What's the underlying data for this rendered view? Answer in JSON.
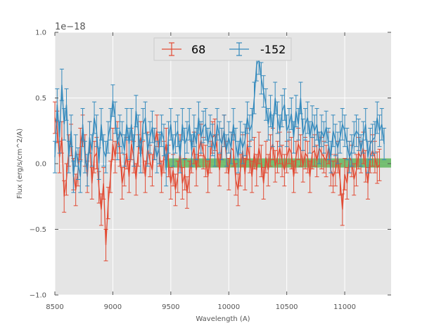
{
  "chart_data": {
    "type": "line",
    "title": "",
    "offset_label": "1e−18",
    "xlabel": "Wavelength (A)",
    "ylabel": "Flux (erg/s/cm^2/A)",
    "xlim": [
      8500,
      11400
    ],
    "ylim": [
      -1.0,
      1.0
    ],
    "x_ticks": [
      8500,
      9000,
      9500,
      10000,
      10500,
      11000
    ],
    "x_tick_labels": [
      "8500",
      "9000",
      "9500",
      "10000",
      "10500",
      "11000"
    ],
    "y_ticks": [
      -1.0,
      -0.5,
      0.0,
      0.5,
      1.0
    ],
    "y_tick_labels": [
      "−1.0",
      "−0.5",
      "0.0",
      "0.5",
      "1.0"
    ],
    "grid": true,
    "legend": {
      "position": "top-center",
      "entries": [
        "68",
        "-152"
      ]
    },
    "band": {
      "x": [
        9450,
        11400
      ],
      "y": [
        -0.03,
        0.04
      ],
      "color": "#4daf4a"
    },
    "x_start": 8500,
    "x_step": 20,
    "series": [
      {
        "name": "68",
        "color": "#e24a33",
        "errors": 0.12,
        "values": [
          0.35,
          0.28,
          0.05,
          0.2,
          -0.25,
          -0.12,
          0.1,
          0.18,
          -0.08,
          -0.2,
          -0.05,
          0.15,
          0.25,
          0.1,
          -0.1,
          0.2,
          -0.15,
          0.05,
          0.08,
          -0.18,
          -0.35,
          -0.15,
          -0.62,
          -0.3,
          -0.1,
          0.15,
          0.05,
          0.2,
          0.1,
          -0.15,
          -0.05,
          0.08,
          -0.1,
          0.15,
          0.05,
          -0.12,
          0.1,
          0.2,
          0.05,
          -0.1,
          0.12,
          0.02,
          -0.05,
          0.15,
          0.25,
          0.1,
          -0.1,
          0.05,
          0.15,
          0.02,
          -0.15,
          -0.05,
          -0.2,
          -0.1,
          0.1,
          -0.15,
          -0.08,
          -0.22,
          -0.1,
          0.05,
          0.12,
          -0.05,
          0.1,
          0.18,
          0.08,
          0.02,
          -0.1,
          0.05,
          0.2,
          0.22,
          0.1,
          -0.05,
          0.15,
          0.25,
          0.05,
          -0.08,
          0.12,
          0.1,
          -0.12,
          -0.2,
          -0.05,
          0.1,
          -0.08,
          0.15,
          0.05,
          -0.1,
          0.08,
          -0.05,
          0.12,
          0.02,
          -0.15,
          0.05,
          -0.05,
          0.1,
          0.15,
          -0.02,
          0.05,
          0.12,
          0.02,
          -0.05,
          0.05,
          0.12,
          0.08,
          -0.1,
          0.05,
          0.15,
          0.1,
          -0.02,
          0.08,
          0.05,
          -0.1,
          0.08,
          0.1,
          0.02,
          0.12,
          0.08,
          0.05,
          0.02,
          0.12,
          -0.05,
          -0.1,
          -0.05,
          0.05,
          -0.12,
          -0.35,
          -0.08,
          -0.15,
          0.05,
          0.02,
          -0.12,
          -0.05,
          0.08,
          0.05,
          0.12,
          -0.02,
          -0.15,
          0.05,
          0.1,
          0.05,
          -0.03,
          -0.01
        ]
      },
      {
        "name": "-152",
        "color": "#348abd",
        "errors": 0.12,
        "values": [
          0.05,
          0.45,
          0.2,
          0.6,
          0.3,
          0.45,
          0.05,
          0.25,
          -0.1,
          0.1,
          0.0,
          -0.1,
          0.3,
          0.05,
          -0.05,
          0.2,
          0.1,
          0.35,
          0.25,
          0.0,
          0.3,
          0.1,
          0.05,
          0.2,
          0.3,
          0.48,
          0.35,
          0.15,
          0.25,
          0.2,
          0.1,
          0.3,
          0.15,
          0.3,
          0.1,
          0.4,
          0.25,
          0.05,
          0.3,
          0.35,
          0.1,
          0.2,
          0.28,
          0.15,
          0.05,
          0.12,
          0.25,
          0.18,
          -0.05,
          0.2,
          0.3,
          0.1,
          0.2,
          0.25,
          0.05,
          0.3,
          0.15,
          0.2,
          0.3,
          0.1,
          0.25,
          0.15,
          0.35,
          0.2,
          0.28,
          0.3,
          0.15,
          0.25,
          0.18,
          0.1,
          0.3,
          0.2,
          0.15,
          0.25,
          0.1,
          0.2,
          0.12,
          0.3,
          0.15,
          0.05,
          0.2,
          0.12,
          0.18,
          0.35,
          0.25,
          0.3,
          0.5,
          0.75,
          0.8,
          0.65,
          0.55,
          0.45,
          0.3,
          0.4,
          0.25,
          0.5,
          0.35,
          0.25,
          0.4,
          0.45,
          0.25,
          0.3,
          0.38,
          0.2,
          0.4,
          0.3,
          0.5,
          0.22,
          0.3,
          0.35,
          0.2,
          0.32,
          0.25,
          0.3,
          0.12,
          0.25,
          0.2,
          0.28,
          0.15,
          0.05,
          0.25,
          0.18,
          0.12,
          0.2,
          0.3,
          0.25,
          0.15,
          0.05,
          0.1,
          0.2,
          0.25,
          0.22,
          0.1,
          0.2,
          0.3,
          0.05,
          0.15,
          0.18,
          0.2,
          0.35,
          0.25,
          0.3,
          0.15
        ]
      }
    ]
  }
}
